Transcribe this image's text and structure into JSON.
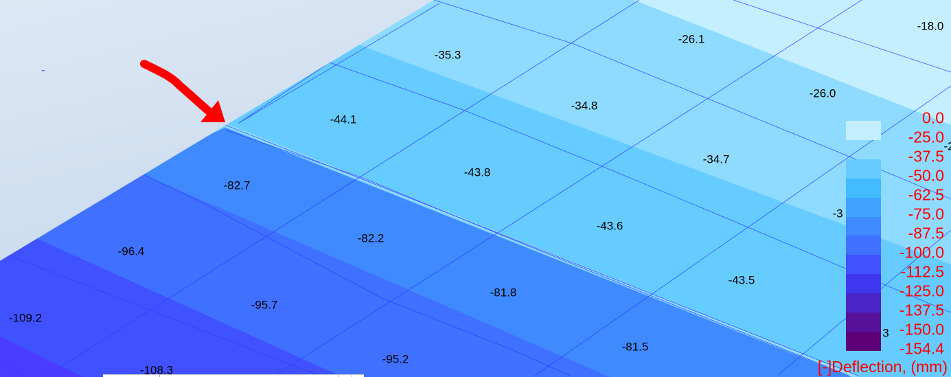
{
  "viewport": {
    "marker_text": "-",
    "node_values": [
      {
        "text": "-35.3"
      },
      {
        "text": "-26.1"
      },
      {
        "text": "-18.0"
      },
      {
        "text": "-44.1"
      },
      {
        "text": "-34.8"
      },
      {
        "text": "-26.0"
      },
      {
        "text": "-2"
      },
      {
        "text": "-43.8"
      },
      {
        "text": "-34.7"
      },
      {
        "text": "-3"
      },
      {
        "text": "-82.7"
      },
      {
        "text": "-43.6"
      },
      {
        "text": "-96.4"
      },
      {
        "text": "-82.2"
      },
      {
        "text": "-43.5"
      },
      {
        "text": "-109.2"
      },
      {
        "text": "-95.7"
      },
      {
        "text": "-81.8"
      },
      {
        "text": "-95.2"
      },
      {
        "text": "-81.5"
      },
      {
        "text": "-108.3"
      },
      {
        "text": "3"
      }
    ],
    "annotation": {
      "type": "red-arrow",
      "color": "#ff0000"
    }
  },
  "legend": {
    "title": "[-]Deflection, (mm)",
    "label_color": "#ff0000",
    "labels": [
      "0.0",
      "-25.0",
      "-37.5",
      "-50.0",
      "-62.5",
      "-75.0",
      "-87.5",
      "-100.0",
      "-112.5",
      "-125.0",
      "-137.5",
      "-150.0",
      "-154.4"
    ],
    "swatch_colors": [
      "#c4efff",
      null,
      "#66ccff",
      "#44bbff",
      "#3fa2ff",
      "#3f8aff",
      "#4070ff",
      "#4052ff",
      "#4038f0",
      "#4a25c8",
      "#56109a",
      "#5e0078"
    ]
  },
  "colors": {
    "background": "#c8d8ec",
    "mesh_line": "#2a3cff"
  }
}
